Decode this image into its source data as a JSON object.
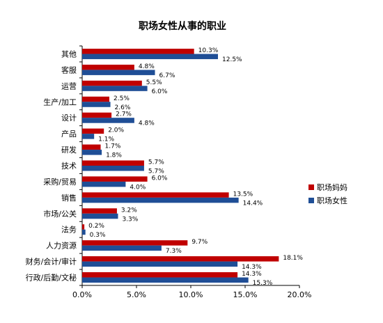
{
  "chart_data": {
    "type": "bar",
    "orientation": "horizontal",
    "title": "职场女性从事的职业",
    "categories": [
      "其他",
      "客服",
      "运营",
      "生产/加工",
      "设计",
      "产品",
      "研发",
      "技术",
      "采购/贸易",
      "销售",
      "市场/公关",
      "法务",
      "人力资源",
      "财务/会计/审计",
      "行政/后勤/文秘"
    ],
    "series": [
      {
        "name": "职场妈妈",
        "color": "#c00000",
        "values": [
          10.3,
          4.8,
          5.5,
          2.5,
          2.7,
          2.0,
          1.7,
          5.7,
          6.0,
          13.5,
          3.2,
          0.2,
          9.7,
          18.1,
          14.3
        ],
        "labels": [
          "10.3%",
          "4.8%",
          "5.5%",
          "2.5%",
          "2.7%",
          "2.0%",
          "1.7%",
          "5.7%",
          "6.0%",
          "13.5%",
          "3.2%",
          "0.2%",
          "9.7%",
          "18.1%",
          "14.3%"
        ]
      },
      {
        "name": "职场女性",
        "color": "#1f4e96",
        "values": [
          12.5,
          6.7,
          6.0,
          2.6,
          4.8,
          1.1,
          1.8,
          5.7,
          4.0,
          14.4,
          3.3,
          0.3,
          7.3,
          14.3,
          15.3
        ],
        "labels": [
          "12.5%",
          "6.7%",
          "6.0%",
          "2.6%",
          "4.8%",
          "1.1%",
          "1.8%",
          "5.7%",
          "4.0%",
          "14.4%",
          "3.3%",
          "0.3%",
          "7.3%",
          "14.3%",
          "15.3%"
        ]
      }
    ],
    "xlim": [
      0,
      20
    ],
    "xticks": [
      "0.0%",
      "5.0%",
      "10.0%",
      "15.0%",
      "20.0%"
    ],
    "grid": false,
    "legend_position": "right"
  }
}
